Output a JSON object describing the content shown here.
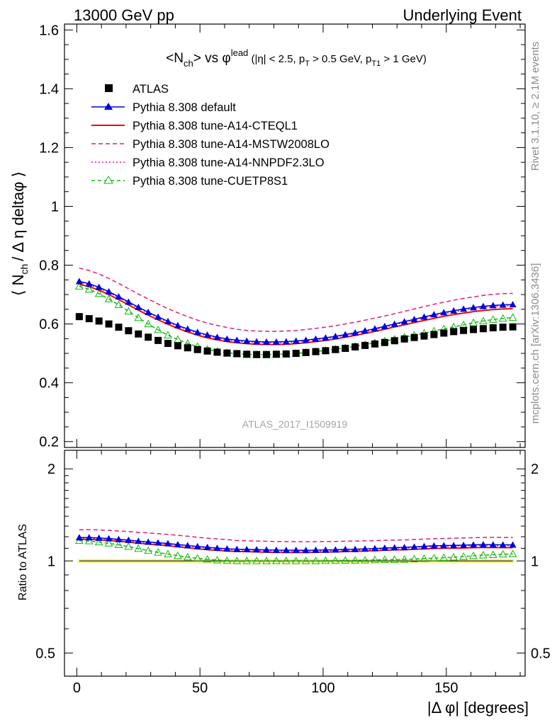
{
  "header": {
    "left": "13000 GeV pp",
    "right": "Underlying Event"
  },
  "side": {
    "rivet": "Rivet 3.1.10, ≥ 2.1M events",
    "mcplots": "mcplots.cern.ch [arXiv:1306.3436]"
  },
  "watermark": "ATLAS_2017_I1509919",
  "colors": {
    "atlas": "#000000",
    "default": "#0000d9",
    "cteql1": "#e01010",
    "mstw": "#e8177d",
    "nnpdf": "#e011c8",
    "cuetp": "#11b811",
    "band": "#f2f28a"
  },
  "chart_data": [
    {
      "type": "line",
      "title": "<N_ch> vs φ^lead (|η| < 2.5, p_T > 0.5 GeV, p_T1 > 1 GeV)",
      "title_parts": {
        "n": "<N",
        "n_sub": "ch",
        "vs": "> vs φ",
        "lead": "lead",
        "cuts1": " (|η| < 2.5, p",
        "sub_t": "T",
        "cuts2": " > 0.5 GeV, p",
        "sub_t1": "T1",
        "cuts3": " > 1 GeV)"
      },
      "ylabel": "⟨ N_ch / Δ η deltaφ ⟩",
      "ylabel_parts": {
        "a": "⟨ N",
        "sub": "ch",
        "b": "/ Δ η deltaφ ⟩"
      },
      "xlim": [
        -5,
        182
      ],
      "ylim": [
        0.18,
        1.62
      ],
      "yticks": [
        0.2,
        0.4,
        0.6,
        0.8,
        1,
        1.2,
        1.4,
        1.6
      ],
      "ytick_labels": [
        "0.2",
        "0.4",
        "0.6",
        "0.8",
        "1",
        "1.2",
        "1.4",
        "1.6"
      ],
      "legend_position": "top-left",
      "x": [
        1,
        5,
        9,
        13,
        17,
        21,
        25,
        29,
        33,
        37,
        41,
        45,
        49,
        53,
        57,
        61,
        65,
        69,
        73,
        77,
        81,
        85,
        89,
        93,
        97,
        101,
        105,
        109,
        113,
        117,
        121,
        125,
        129,
        133,
        137,
        141,
        145,
        149,
        153,
        157,
        161,
        165,
        169,
        173,
        177
      ],
      "series": [
        {
          "name": "ATLAS",
          "key": "atlas",
          "style": "square",
          "values": [
            0.625,
            0.618,
            0.61,
            0.6,
            0.589,
            0.577,
            0.566,
            0.555,
            0.544,
            0.534,
            0.526,
            0.519,
            0.513,
            0.508,
            0.504,
            0.501,
            0.499,
            0.497,
            0.496,
            0.496,
            0.497,
            0.498,
            0.5,
            0.503,
            0.506,
            0.509,
            0.513,
            0.517,
            0.522,
            0.527,
            0.532,
            0.537,
            0.543,
            0.549,
            0.554,
            0.559,
            0.564,
            0.569,
            0.574,
            0.578,
            0.581,
            0.584,
            0.587,
            0.589,
            0.59
          ]
        },
        {
          "name": "Pythia 8.308 default",
          "key": "default",
          "style": "line-triangle",
          "values": [
            0.745,
            0.737,
            0.725,
            0.71,
            0.693,
            0.675,
            0.657,
            0.64,
            0.624,
            0.609,
            0.595,
            0.583,
            0.572,
            0.563,
            0.555,
            0.549,
            0.545,
            0.542,
            0.54,
            0.539,
            0.539,
            0.54,
            0.542,
            0.545,
            0.549,
            0.553,
            0.558,
            0.564,
            0.57,
            0.577,
            0.584,
            0.592,
            0.6,
            0.608,
            0.616,
            0.624,
            0.632,
            0.639,
            0.645,
            0.651,
            0.656,
            0.66,
            0.663,
            0.665,
            0.666
          ]
        },
        {
          "name": "Pythia 8.308 tune-A14-CTEQL1",
          "key": "cteql1",
          "style": "line",
          "values": [
            0.735,
            0.727,
            0.715,
            0.7,
            0.683,
            0.665,
            0.647,
            0.63,
            0.614,
            0.599,
            0.585,
            0.573,
            0.562,
            0.553,
            0.546,
            0.54,
            0.536,
            0.533,
            0.531,
            0.53,
            0.53,
            0.531,
            0.533,
            0.536,
            0.54,
            0.544,
            0.549,
            0.555,
            0.561,
            0.568,
            0.575,
            0.582,
            0.59,
            0.597,
            0.605,
            0.612,
            0.619,
            0.626,
            0.632,
            0.637,
            0.642,
            0.646,
            0.649,
            0.651,
            0.652
          ]
        },
        {
          "name": "Pythia 8.308 tune-A14-MSTW2008LO",
          "key": "mstw",
          "style": "dash",
          "values": [
            0.79,
            0.782,
            0.77,
            0.755,
            0.738,
            0.72,
            0.702,
            0.685,
            0.668,
            0.652,
            0.638,
            0.625,
            0.613,
            0.603,
            0.595,
            0.588,
            0.582,
            0.578,
            0.576,
            0.575,
            0.575,
            0.576,
            0.578,
            0.581,
            0.585,
            0.589,
            0.594,
            0.6,
            0.606,
            0.613,
            0.62,
            0.627,
            0.635,
            0.643,
            0.651,
            0.659,
            0.667,
            0.674,
            0.681,
            0.687,
            0.692,
            0.697,
            0.701,
            0.703,
            0.704
          ]
        },
        {
          "name": "Pythia 8.308 tune-A14-NNPDF2.3LO",
          "key": "nnpdf",
          "style": "dot",
          "values": [
            0.742,
            0.734,
            0.722,
            0.707,
            0.69,
            0.672,
            0.654,
            0.637,
            0.621,
            0.606,
            0.592,
            0.58,
            0.569,
            0.56,
            0.552,
            0.546,
            0.542,
            0.539,
            0.537,
            0.536,
            0.536,
            0.537,
            0.539,
            0.542,
            0.546,
            0.55,
            0.555,
            0.561,
            0.567,
            0.574,
            0.581,
            0.589,
            0.597,
            0.605,
            0.613,
            0.621,
            0.628,
            0.635,
            0.641,
            0.647,
            0.652,
            0.656,
            0.659,
            0.661,
            0.662
          ]
        },
        {
          "name": "Pythia 8.308 tune-CUETP8S1",
          "key": "cuetp",
          "style": "dash-open-triangle",
          "values": [
            0.728,
            0.718,
            0.703,
            0.685,
            0.665,
            0.643,
            0.621,
            0.6,
            0.58,
            0.562,
            0.547,
            0.534,
            0.523,
            0.514,
            0.507,
            0.502,
            0.499,
            0.497,
            0.496,
            0.496,
            0.497,
            0.498,
            0.5,
            0.503,
            0.506,
            0.51,
            0.514,
            0.519,
            0.524,
            0.53,
            0.536,
            0.542,
            0.548,
            0.555,
            0.562,
            0.569,
            0.576,
            0.583,
            0.59,
            0.597,
            0.604,
            0.61,
            0.615,
            0.619,
            0.622
          ]
        }
      ]
    },
    {
      "type": "line",
      "ylabel": "Ratio to ATLAS",
      "xlabel": "|Δ φ| [degrees]",
      "xlim": [
        -5,
        182
      ],
      "ylim": [
        0.42,
        2.3
      ],
      "log_y": true,
      "xticks": [
        0,
        50,
        100,
        150
      ],
      "xtick_labels": [
        "0",
        "50",
        "100",
        "150"
      ],
      "yticks": [
        0.5,
        1,
        2
      ],
      "ytick_labels": [
        "0.5",
        "1",
        "2"
      ],
      "band": [
        0.985,
        1.015
      ],
      "note": "ratio series are each Pythia series divided by ATLAS at the same x"
    }
  ]
}
